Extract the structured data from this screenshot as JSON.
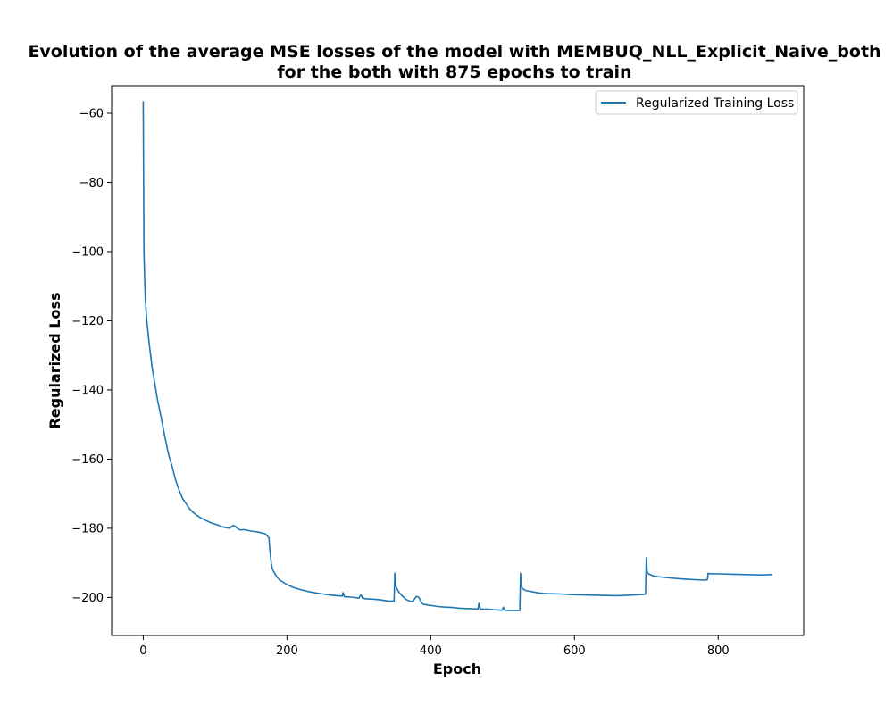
{
  "chart_data": {
    "type": "line",
    "title_line1": "Evolution of the average MSE losses of the model with MEMBUQ_NLL_Explicit_Naive_both",
    "title_line2": "for the both with 875 epochs to train",
    "xlabel": "Epoch",
    "ylabel": "Regularized Loss",
    "xlim": [
      -44,
      919
    ],
    "ylim": [
      -211,
      -52
    ],
    "xticks": [
      0,
      200,
      400,
      600,
      800
    ],
    "yticks": [
      -60,
      -80,
      -100,
      -120,
      -140,
      -160,
      -180,
      -200
    ],
    "legend": {
      "placement": "top-right",
      "entries": [
        "Regularized Training Loss"
      ]
    },
    "grid": false,
    "series": [
      {
        "name": "Regularized Training Loss",
        "color": "#1f77b4",
        "x": [
          0,
          1,
          2,
          3,
          5,
          8,
          12,
          16,
          20,
          25,
          30,
          35,
          40,
          45,
          50,
          55,
          60,
          65,
          70,
          75,
          80,
          85,
          90,
          95,
          100,
          110,
          120,
          125,
          128,
          132,
          136,
          140,
          150,
          160,
          170,
          175,
          176,
          178,
          180,
          185,
          190,
          200,
          210,
          220,
          230,
          240,
          250,
          260,
          270,
          277,
          278,
          280,
          290,
          300,
          303,
          305,
          310,
          320,
          330,
          340,
          349,
          350,
          351,
          353,
          356,
          360,
          365,
          370,
          375,
          380,
          382,
          384,
          387,
          390,
          400,
          410,
          420,
          430,
          440,
          450,
          460,
          466,
          467,
          469,
          480,
          490,
          500,
          501,
          503,
          510,
          520,
          524,
          525,
          526,
          528,
          532,
          540,
          550,
          560,
          580,
          600,
          620,
          640,
          660,
          680,
          698,
          699,
          700,
          701,
          703,
          710,
          720,
          740,
          760,
          780,
          785,
          786,
          788,
          790,
          800,
          820,
          840,
          860,
          875
        ],
        "values": [
          -56.5,
          -100,
          -108,
          -114,
          -120,
          -126,
          -133,
          -138,
          -143,
          -148,
          -153.5,
          -158.5,
          -162,
          -166,
          -169,
          -171.5,
          -173,
          -174.5,
          -175.5,
          -176.3,
          -177,
          -177.5,
          -178,
          -178.5,
          -178.8,
          -179.6,
          -180,
          -179.2,
          -179.4,
          -180.2,
          -180.5,
          -180.4,
          -180.8,
          -181.1,
          -181.6,
          -182.8,
          -186,
          -190,
          -192,
          -193.8,
          -195,
          -196.3,
          -197.2,
          -197.8,
          -198.3,
          -198.7,
          -199,
          -199.3,
          -199.5,
          -199.6,
          -198.6,
          -199.8,
          -199.9,
          -200.2,
          -199.2,
          -200.2,
          -200.4,
          -200.5,
          -200.7,
          -201,
          -201.1,
          -193,
          -196.5,
          -197.5,
          -198.5,
          -199.5,
          -200.5,
          -201,
          -201.2,
          -199.7,
          -199.8,
          -200.1,
          -201.5,
          -202,
          -202.3,
          -202.6,
          -202.8,
          -202.9,
          -203.1,
          -203.2,
          -203.3,
          -203.3,
          -201.7,
          -203.4,
          -203.4,
          -203.6,
          -203.7,
          -202.8,
          -203.7,
          -203.8,
          -203.8,
          -203.8,
          -193,
          -196.8,
          -197.5,
          -198,
          -198.3,
          -198.7,
          -198.9,
          -199,
          -199.2,
          -199.3,
          -199.4,
          -199.5,
          -199.3,
          -199.1,
          -199,
          -188.5,
          -192.5,
          -193.2,
          -193.8,
          -194.1,
          -194.5,
          -194.8,
          -195,
          -194.9,
          -193,
          -193.2,
          -193.1,
          -193.2,
          -193.3,
          -193.4,
          -193.5,
          -193.4
        ]
      }
    ]
  }
}
